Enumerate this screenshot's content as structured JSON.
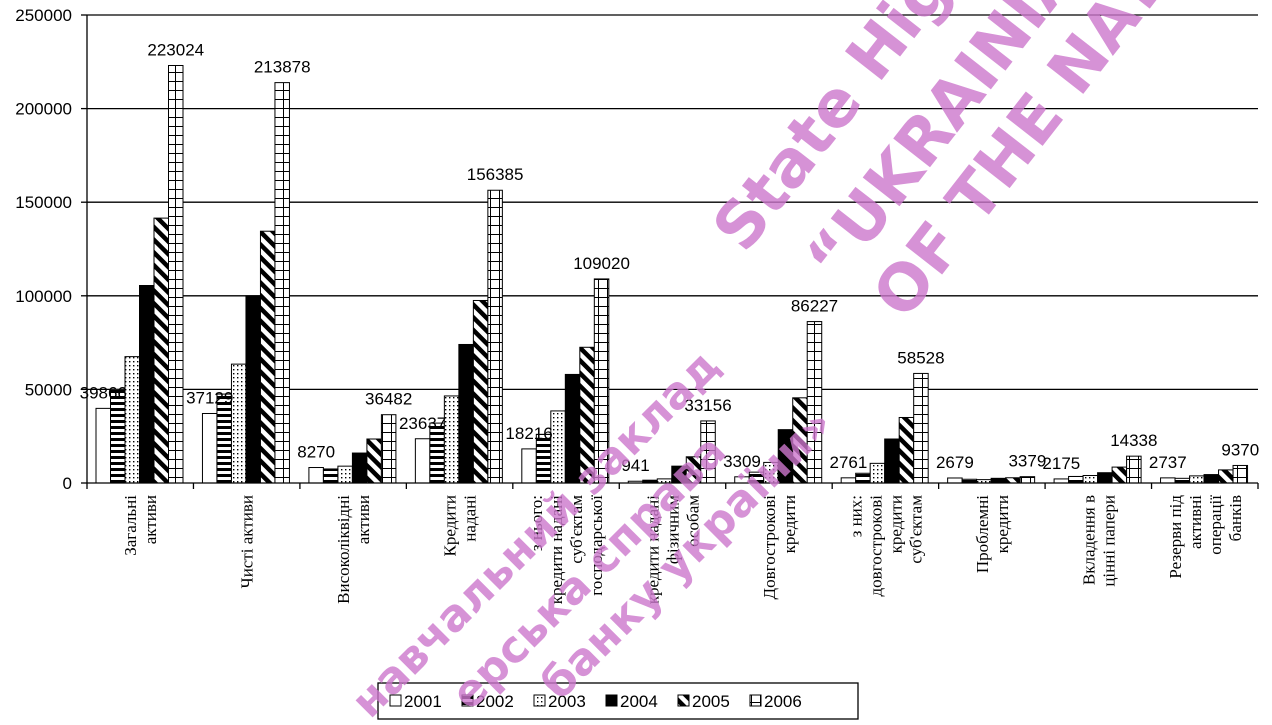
{
  "chart_data": {
    "type": "bar",
    "title": "",
    "xlabel": "",
    "ylabel": "",
    "ylim": [
      0,
      250000
    ],
    "yticks": [
      0,
      50000,
      100000,
      150000,
      200000,
      250000
    ],
    "ytick_labels": [
      "0",
      "50000",
      "100000",
      "150000",
      "200000",
      "250000"
    ],
    "grid": "horizontal",
    "legend_position": "bottom",
    "categories": [
      [
        "Загальні",
        "активи"
      ],
      [
        "Чисті активи"
      ],
      [
        "Високоліквідні",
        "активи"
      ],
      [
        "Кредити",
        "надані"
      ],
      [
        "з нього:",
        "кредити надані",
        "суб'єктам",
        "господарської"
      ],
      [
        "кредити надані",
        "фізичним",
        "особам"
      ],
      [
        "Довгострокові",
        "кредити"
      ],
      [
        "з них:",
        "довгострокові",
        "кредити",
        "суб'єктам"
      ],
      [
        "Проблемні",
        "кредити"
      ],
      [
        "Вкладення в",
        "цінні папери"
      ],
      [
        "Резерви під",
        "активні",
        "операції",
        "банків"
      ]
    ],
    "series": [
      {
        "name": "2001",
        "pattern": "white",
        "values": [
          39866,
          37129,
          8270,
          23637,
          18216,
          941,
          3309,
          2761,
          2679,
          2175,
          2737
        ]
      },
      {
        "name": "2002",
        "pattern": "hstripes",
        "values": [
          50000,
          47500,
          7500,
          32000,
          26000,
          1500,
          5800,
          5200,
          2000,
          3500,
          2500
        ]
      },
      {
        "name": "2003",
        "pattern": "dots",
        "values": [
          67500,
          63500,
          9000,
          46500,
          38500,
          2200,
          11000,
          10500,
          1800,
          4000,
          3800
        ]
      },
      {
        "name": "2004",
        "pattern": "black",
        "values": [
          105500,
          100000,
          16000,
          74000,
          58000,
          9000,
          28500,
          23500,
          2500,
          5500,
          4500
        ]
      },
      {
        "name": "2005",
        "pattern": "diag",
        "values": [
          141500,
          134500,
          23500,
          97500,
          72500,
          14000,
          45500,
          35000,
          2800,
          8500,
          7000
        ]
      },
      {
        "name": "2006",
        "pattern": "grid",
        "values": [
          223024,
          213878,
          36482,
          156385,
          109020,
          33156,
          86227,
          58528,
          3379,
          14338,
          9370
        ]
      }
    ],
    "data_labels": [
      {
        "series": 0,
        "category": 0,
        "text": "39866"
      },
      {
        "series": 5,
        "category": 0,
        "text": "223024"
      },
      {
        "series": 0,
        "category": 1,
        "text": "37129"
      },
      {
        "series": 5,
        "category": 1,
        "text": "213878"
      },
      {
        "series": 0,
        "category": 2,
        "text": "8270"
      },
      {
        "series": 5,
        "category": 2,
        "text": "36482"
      },
      {
        "series": 0,
        "category": 3,
        "text": "23637"
      },
      {
        "series": 5,
        "category": 3,
        "text": "156385"
      },
      {
        "series": 0,
        "category": 4,
        "text": "18216"
      },
      {
        "series": 5,
        "category": 4,
        "text": "109020"
      },
      {
        "series": 0,
        "category": 5,
        "text": "941"
      },
      {
        "series": 5,
        "category": 5,
        "text": "33156"
      },
      {
        "series": 0,
        "category": 6,
        "text": "3309"
      },
      {
        "series": 5,
        "category": 6,
        "text": "86227"
      },
      {
        "series": 0,
        "category": 7,
        "text": "2761"
      },
      {
        "series": 5,
        "category": 7,
        "text": "58528"
      },
      {
        "series": 0,
        "category": 8,
        "text": "2679"
      },
      {
        "series": 5,
        "category": 8,
        "text": "3379"
      },
      {
        "series": 0,
        "category": 9,
        "text": "2175"
      },
      {
        "series": 5,
        "category": 9,
        "text": "14338"
      },
      {
        "series": 0,
        "category": 10,
        "text": "2737"
      },
      {
        "series": 5,
        "category": 10,
        "text": "9370"
      }
    ]
  },
  "watermarks": [
    {
      "text": "State Higher E"
    },
    {
      "text": "“UKRAINIAN AC"
    },
    {
      "text": "OF THE NATIONAL"
    },
    {
      "text": "навчальний заклад"
    },
    {
      "text": "ерська справа"
    },
    {
      "text": "банку україни»"
    }
  ]
}
